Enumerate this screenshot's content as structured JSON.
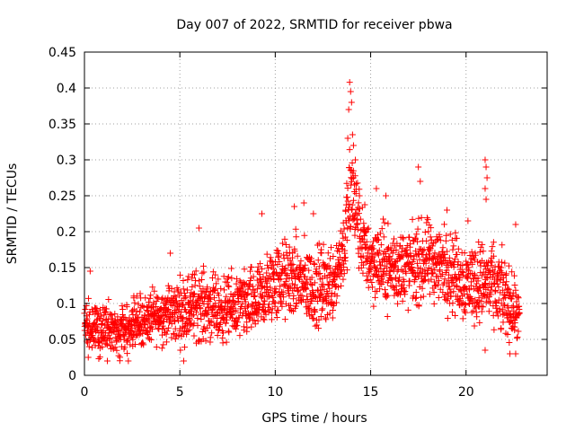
{
  "chart_data": {
    "type": "scatter",
    "title": "Day 007 of 2022, SRMTID for receiver pbwa",
    "xlabel": "GPS time / hours",
    "ylabel": "SRMTID / TECUs",
    "xlim": [
      0,
      24.25
    ],
    "ylim": [
      0,
      0.45
    ],
    "grid": true,
    "marker": "+",
    "color": "#ff0000",
    "xticks": [
      0,
      5,
      10,
      15,
      20
    ],
    "xtick_labels": [
      "0",
      "5",
      "10",
      "15",
      "20"
    ],
    "yticks": [
      0,
      0.05,
      0.1,
      0.15,
      0.2,
      0.25,
      0.3,
      0.35,
      0.4,
      0.45
    ],
    "ytick_labels": [
      "0",
      "0.05",
      "0.1",
      "0.15",
      "0.2",
      "0.25",
      "0.3",
      "0.35",
      "0.4",
      "0.45"
    ],
    "series": [
      {
        "name": "SRMTID",
        "trend": [
          {
            "x": 0.0,
            "center": 0.07,
            "spread": 0.03
          },
          {
            "x": 1.0,
            "center": 0.065,
            "spread": 0.03
          },
          {
            "x": 2.0,
            "center": 0.06,
            "spread": 0.03
          },
          {
            "x": 3.0,
            "center": 0.075,
            "spread": 0.03
          },
          {
            "x": 4.0,
            "center": 0.085,
            "spread": 0.035
          },
          {
            "x": 5.0,
            "center": 0.09,
            "spread": 0.04
          },
          {
            "x": 6.0,
            "center": 0.1,
            "spread": 0.045
          },
          {
            "x": 7.0,
            "center": 0.09,
            "spread": 0.04
          },
          {
            "x": 8.0,
            "center": 0.095,
            "spread": 0.04
          },
          {
            "x": 9.0,
            "center": 0.1,
            "spread": 0.045
          },
          {
            "x": 10.0,
            "center": 0.13,
            "spread": 0.05
          },
          {
            "x": 11.0,
            "center": 0.135,
            "spread": 0.05
          },
          {
            "x": 12.0,
            "center": 0.12,
            "spread": 0.05
          },
          {
            "x": 13.0,
            "center": 0.13,
            "spread": 0.05
          },
          {
            "x": 13.6,
            "center": 0.18,
            "spread": 0.05
          },
          {
            "x": 14.0,
            "center": 0.26,
            "spread": 0.07
          },
          {
            "x": 14.5,
            "center": 0.19,
            "spread": 0.05
          },
          {
            "x": 15.0,
            "center": 0.16,
            "spread": 0.05
          },
          {
            "x": 16.0,
            "center": 0.15,
            "spread": 0.05
          },
          {
            "x": 17.0,
            "center": 0.15,
            "spread": 0.05
          },
          {
            "x": 18.0,
            "center": 0.16,
            "spread": 0.05
          },
          {
            "x": 19.0,
            "center": 0.15,
            "spread": 0.05
          },
          {
            "x": 20.0,
            "center": 0.13,
            "spread": 0.05
          },
          {
            "x": 21.0,
            "center": 0.13,
            "spread": 0.05
          },
          {
            "x": 22.0,
            "center": 0.11,
            "spread": 0.05
          },
          {
            "x": 22.8,
            "center": 0.08,
            "spread": 0.03
          }
        ],
        "point_count": 2200,
        "x_range": [
          0.0,
          22.8
        ],
        "peaks": [
          {
            "x": 13.9,
            "y": 0.408
          },
          {
            "x": 13.95,
            "y": 0.395
          },
          {
            "x": 14.0,
            "y": 0.38
          },
          {
            "x": 13.85,
            "y": 0.37
          },
          {
            "x": 14.05,
            "y": 0.335
          },
          {
            "x": 13.8,
            "y": 0.33
          },
          {
            "x": 14.1,
            "y": 0.32
          },
          {
            "x": 14.2,
            "y": 0.3
          },
          {
            "x": 17.5,
            "y": 0.29
          },
          {
            "x": 21.0,
            "y": 0.3
          },
          {
            "x": 21.05,
            "y": 0.29
          },
          {
            "x": 21.1,
            "y": 0.275
          },
          {
            "x": 21.0,
            "y": 0.26
          },
          {
            "x": 21.05,
            "y": 0.245
          },
          {
            "x": 17.6,
            "y": 0.27
          },
          {
            "x": 15.3,
            "y": 0.26
          },
          {
            "x": 15.8,
            "y": 0.25
          },
          {
            "x": 11.0,
            "y": 0.235
          },
          {
            "x": 11.5,
            "y": 0.24
          },
          {
            "x": 9.3,
            "y": 0.225
          },
          {
            "x": 12.0,
            "y": 0.225
          },
          {
            "x": 6.0,
            "y": 0.205
          },
          {
            "x": 22.6,
            "y": 0.21
          },
          {
            "x": 20.1,
            "y": 0.215
          },
          {
            "x": 19.0,
            "y": 0.23
          },
          {
            "x": 4.5,
            "y": 0.17
          },
          {
            "x": 0.3,
            "y": 0.145
          },
          {
            "x": 0.2,
            "y": 0.025
          },
          {
            "x": 1.2,
            "y": 0.02
          },
          {
            "x": 2.3,
            "y": 0.02
          },
          {
            "x": 5.2,
            "y": 0.02
          },
          {
            "x": 21.0,
            "y": 0.035
          },
          {
            "x": 22.3,
            "y": 0.03
          },
          {
            "x": 22.6,
            "y": 0.03
          }
        ]
      }
    ]
  }
}
